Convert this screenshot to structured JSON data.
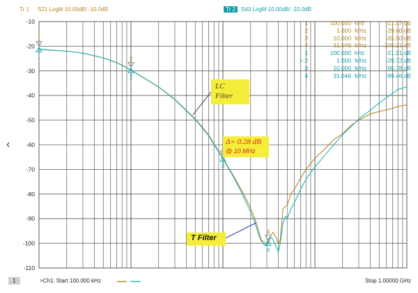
{
  "header": {
    "tr1_badge": "Tr 1",
    "tr1_label": "S21 LogM 10.00dB/  -10.0dB",
    "tr2_badge": "Tr 2",
    "tr2_label": "S43 LogM 10.00dB/  -10.0dB"
  },
  "markers": {
    "tr1": [
      {
        "idx": "1",
        "freq": "100.000",
        "unit": "kHz",
        "value": "-21.27 dB"
      },
      {
        "idx": "2",
        "freq": "1.000",
        "unit": "MHz",
        "value": "-29.60 dB"
      },
      {
        "idx": "3",
        "freq": "10.000",
        "unit": "MHz",
        "value": "-65.50 dB"
      },
      {
        "idx": "4",
        "freq": "31.046",
        "unit": "MHz",
        "value": "-100.21 dB"
      }
    ],
    "tr2": [
      {
        "idx": "1",
        "freq": "100.000",
        "unit": "kHz",
        "value": "-21.21 dB"
      },
      {
        "idx": "> 2",
        "freq": "1.000",
        "unit": "MHz",
        "value": "-29.72 dB"
      },
      {
        "idx": "3",
        "freq": "10.000",
        "unit": "MHz",
        "value": "-65.78 dB"
      },
      {
        "idx": "4",
        "freq": "31.046",
        "unit": "MHz",
        "value": "-99.46 dB"
      }
    ]
  },
  "annotations": {
    "lc_line1": "LC",
    "lc_line2": "Filter",
    "t_filter": "T Filter",
    "delta_line1": "Δ= 0.28 dB",
    "delta_line2": "@ 10 MHz"
  },
  "footer": {
    "channel": "1",
    "start": ">Ch1:  Start  100.000 kHz",
    "stop": "Stop  1.00000 GHz"
  },
  "colors": {
    "trace_lc": "#b8862a",
    "trace_t": "#1fb4bc",
    "marker_triangle": "#8a8a8a",
    "annotation_bg": "#f4ee3a",
    "delta_text": "#e02020",
    "grid": "#5a5a5a"
  },
  "ui": {
    "left_nav_icon": "chevron-left-icon"
  },
  "chart_data": {
    "type": "line",
    "x_scale": "log",
    "x_range_hz": [
      100000,
      1000000000
    ],
    "ylim": [
      -110,
      -10
    ],
    "ytick_labels": [
      "-10",
      "-20",
      "-30",
      "-40",
      "-50",
      "-60",
      "-70",
      "-80",
      "-90",
      "-100",
      "-110"
    ],
    "grid": true,
    "marker_points": [
      {
        "label": "1",
        "x": 100000,
        "y": -21.2
      },
      {
        "label": "2",
        "x": 1000000,
        "y": -29.7
      },
      {
        "label": "3",
        "x": 10000000,
        "y": -65.6
      },
      {
        "label": "4",
        "x": 31046000,
        "y": -99.8
      }
    ],
    "series": [
      {
        "x": [
          100000,
          200000,
          300000,
          500000,
          700000,
          1000000,
          2000000,
          3000000,
          5000000,
          7000000,
          10000000,
          13000000,
          16000000,
          19000000,
          22000000,
          24000000,
          26000000,
          28000000,
          30000000,
          31046000,
          33000000,
          35000000,
          38000000,
          40000000,
          42000000,
          45000000,
          48000000,
          50000000,
          55000000,
          60000000,
          70000000,
          80000000,
          100000000,
          130000000,
          160000000,
          200000000,
          250000000,
          300000000,
          400000000,
          500000000,
          650000000,
          800000000,
          1000000000
        ],
        "values": [
          -21.3,
          -22.0,
          -22.8,
          -24.7,
          -26.6,
          -29.6,
          -36.5,
          -41.5,
          -49.5,
          -56.0,
          -65.5,
          -72.5,
          -78.5,
          -84.0,
          -89.5,
          -94.0,
          -98.5,
          -99.5,
          -100.5,
          -100.2,
          -97.0,
          -95.5,
          -97.5,
          -100.5,
          -98.5,
          -86.0,
          -85.0,
          -84.5,
          -80.0,
          -78.0,
          -73.5,
          -70.0,
          -65.5,
          -61.5,
          -58.0,
          -55.5,
          -52.0,
          -50.0,
          -47.5,
          -46.5,
          -45.5,
          -44.5,
          -43.8
        ]
      },
      {
        "x": [
          100000,
          200000,
          300000,
          500000,
          700000,
          1000000,
          2000000,
          3000000,
          5000000,
          7000000,
          10000000,
          13000000,
          16000000,
          19000000,
          22000000,
          24000000,
          26000000,
          28000000,
          30000000,
          31046000,
          33000000,
          35000000,
          38000000,
          40000000,
          42000000,
          45000000,
          48000000,
          50000000,
          55000000,
          60000000,
          70000000,
          80000000,
          100000000,
          130000000,
          160000000,
          200000000,
          250000000,
          300000000,
          400000000,
          500000000,
          650000000,
          800000000,
          1000000000
        ],
        "values": [
          -21.2,
          -22.0,
          -22.8,
          -24.8,
          -26.7,
          -29.7,
          -36.6,
          -41.7,
          -49.8,
          -56.4,
          -65.8,
          -73.0,
          -79.5,
          -85.5,
          -91.0,
          -95.5,
          -99.0,
          -100.5,
          -101.0,
          -99.5,
          -97.5,
          -98.5,
          -101.5,
          -103.5,
          -100.0,
          -92.0,
          -89.0,
          -90.0,
          -86.0,
          -83.5,
          -78.0,
          -74.0,
          -69.0,
          -64.0,
          -60.0,
          -56.0,
          -52.5,
          -49.5,
          -46.0,
          -43.0,
          -40.0,
          -37.5,
          -36.5
        ]
      }
    ]
  }
}
